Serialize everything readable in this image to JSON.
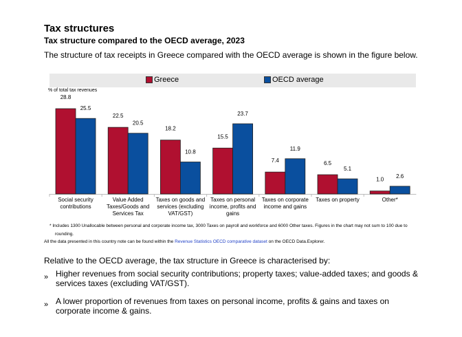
{
  "title": "Tax structures",
  "subtitle": "Tax structure compared to the OECD average, 2023",
  "intro": "The structure of tax receipts in Greece compared with the OECD average is shown in the figure below.",
  "chart_data": {
    "type": "bar",
    "ylabel": "% of total tax revenues",
    "categories": [
      "Social security contributions",
      "Value Added Taxes/Goods and Services Tax",
      "Taxes on goods and services (excluding VAT/GST)",
      "Taxes on personal income, profits and gains",
      "Taxes on corporate income and gains",
      "Taxes on property",
      "Other*"
    ],
    "series": [
      {
        "name": "Greece",
        "color": "#b01030",
        "values": [
          28.8,
          22.5,
          18.2,
          15.5,
          7.4,
          6.5,
          1.0
        ],
        "labels": [
          "28.8",
          "22.5",
          "18.2",
          "15.5",
          "7.4",
          "6.5",
          "1.0"
        ]
      },
      {
        "name": "OECD average",
        "color": "#0a4f9e",
        "values": [
          25.5,
          20.5,
          10.8,
          23.7,
          11.9,
          5.1,
          2.6
        ],
        "labels": [
          "25.5",
          "20.5",
          "10.8",
          "23.7",
          "11.9",
          "5.1",
          "2.6"
        ]
      }
    ],
    "ylim": [
      0,
      30
    ],
    "legend": "top"
  },
  "footnote": "* Includes 1300 Unallocable between personal and corporate income tax, 3000 Taxes on payroll and workforce and 6000 Other taxes. Figures in the chart may not sum to 100 due to rounding.",
  "source_pre": "All the data presented in this country note can be found within the ",
  "source_link": "Revenue Statistics OECD comparative dataset",
  "source_post": " on the OECD Data.Explorer.",
  "summary": "Relative to the OECD average, the tax structure in Greece is characterised by:",
  "bullets": [
    {
      "marker": "»",
      "text": "Higher revenues from social security contributions; property taxes; value-added taxes; and goods & services taxes (excluding VAT/GST)."
    },
    {
      "marker": "»",
      "text": "A lower proportion of revenues from taxes on personal income, profits & gains and taxes on corporate income & gains."
    }
  ]
}
